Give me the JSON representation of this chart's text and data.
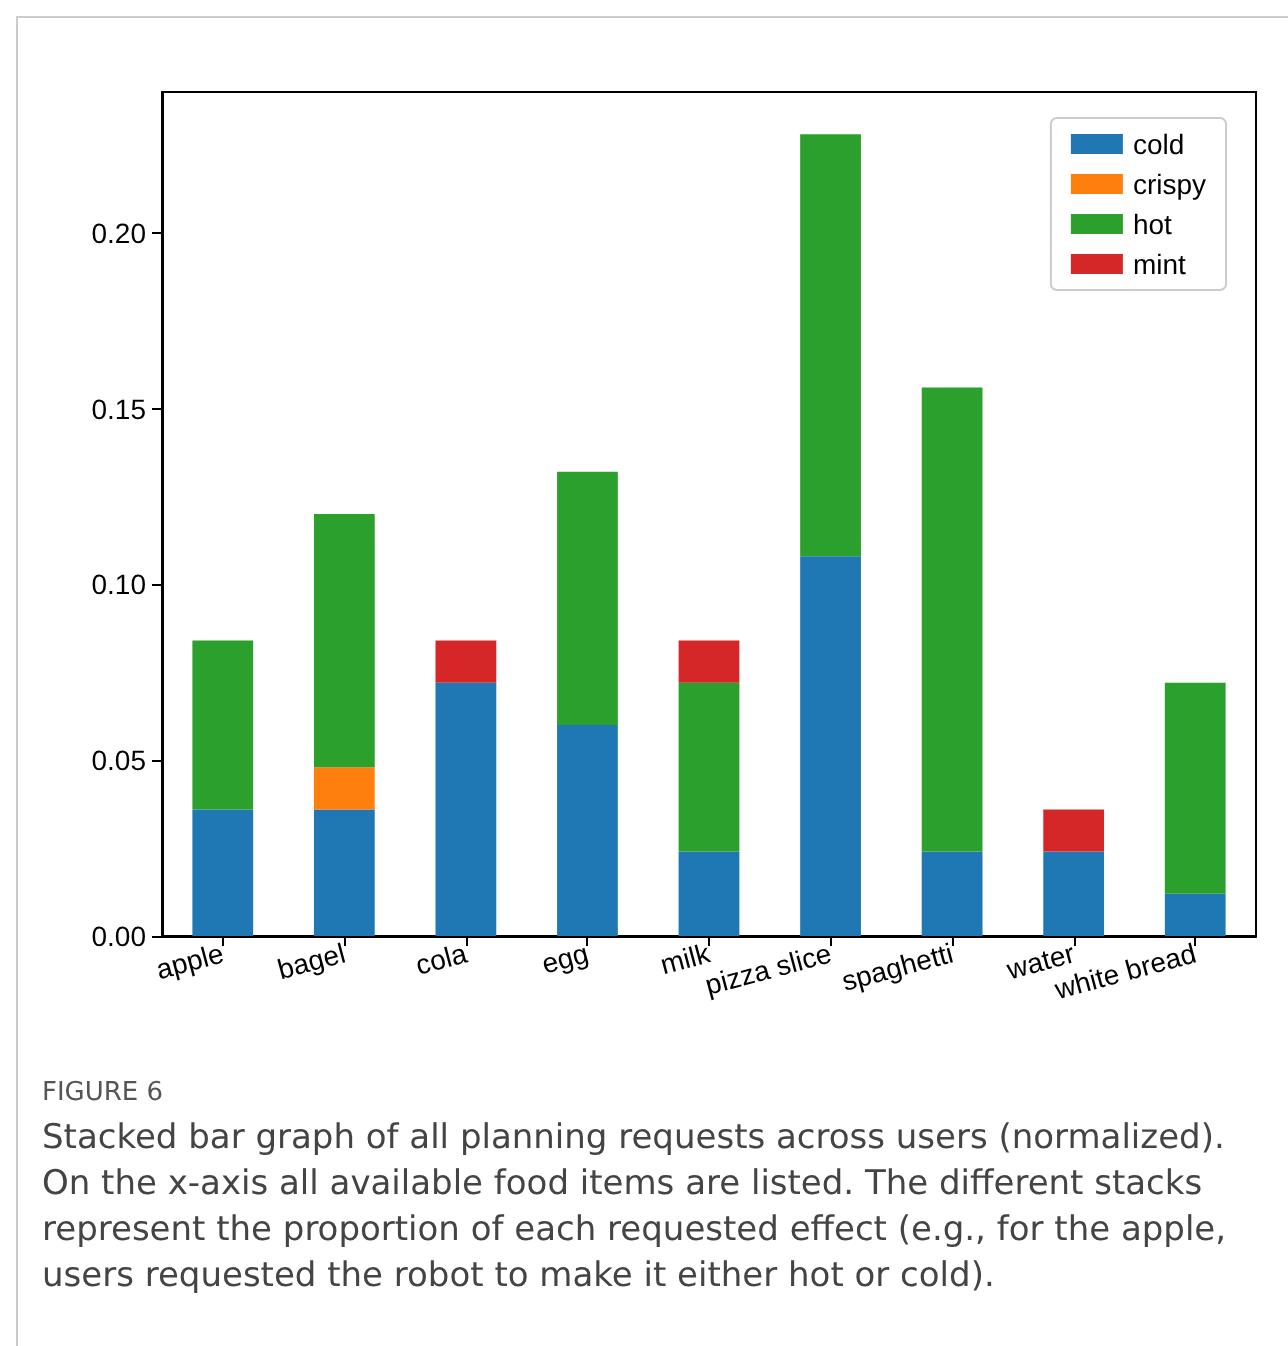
{
  "chart_data": {
    "type": "bar",
    "stacked": true,
    "categories": [
      "apple",
      "bagel",
      "cola",
      "egg",
      "milk",
      "pizza slice",
      "spaghetti",
      "water",
      "white bread"
    ],
    "series": [
      {
        "name": "cold",
        "color": "#1f77b4",
        "values": [
          0.036,
          0.036,
          0.072,
          0.06,
          0.024,
          0.108,
          0.024,
          0.024,
          0.012
        ]
      },
      {
        "name": "crispy",
        "color": "#ff7f0e",
        "values": [
          0,
          0.012,
          0,
          0,
          0,
          0,
          0,
          0,
          0
        ]
      },
      {
        "name": "hot",
        "color": "#2ca02c",
        "values": [
          0.048,
          0.072,
          0,
          0.072,
          0.048,
          0.12,
          0.132,
          0,
          0.06
        ]
      },
      {
        "name": "mint",
        "color": "#d62728",
        "values": [
          0,
          0,
          0.012,
          0,
          0.012,
          0,
          0,
          0.012,
          0
        ]
      }
    ],
    "ylim": [
      0,
      0.24
    ],
    "yticks": [
      {
        "value": 0,
        "label": "0.00"
      },
      {
        "value": 0.05,
        "label": "0.05"
      },
      {
        "value": 0.1,
        "label": "0.10"
      },
      {
        "value": 0.15,
        "label": "0.15"
      },
      {
        "value": 0.2,
        "label": "0.20"
      }
    ],
    "grid": false,
    "legend": "top right",
    "annotations": [
      "FIGURE 6",
      "Stacked bar graph of all planning requests across users (normalized). On the x-axis all available food items are listed. The different stacks represent the proportion of each requested effect (e.g., for the apple, users requested the robot to make it either hot or cold)."
    ]
  }
}
